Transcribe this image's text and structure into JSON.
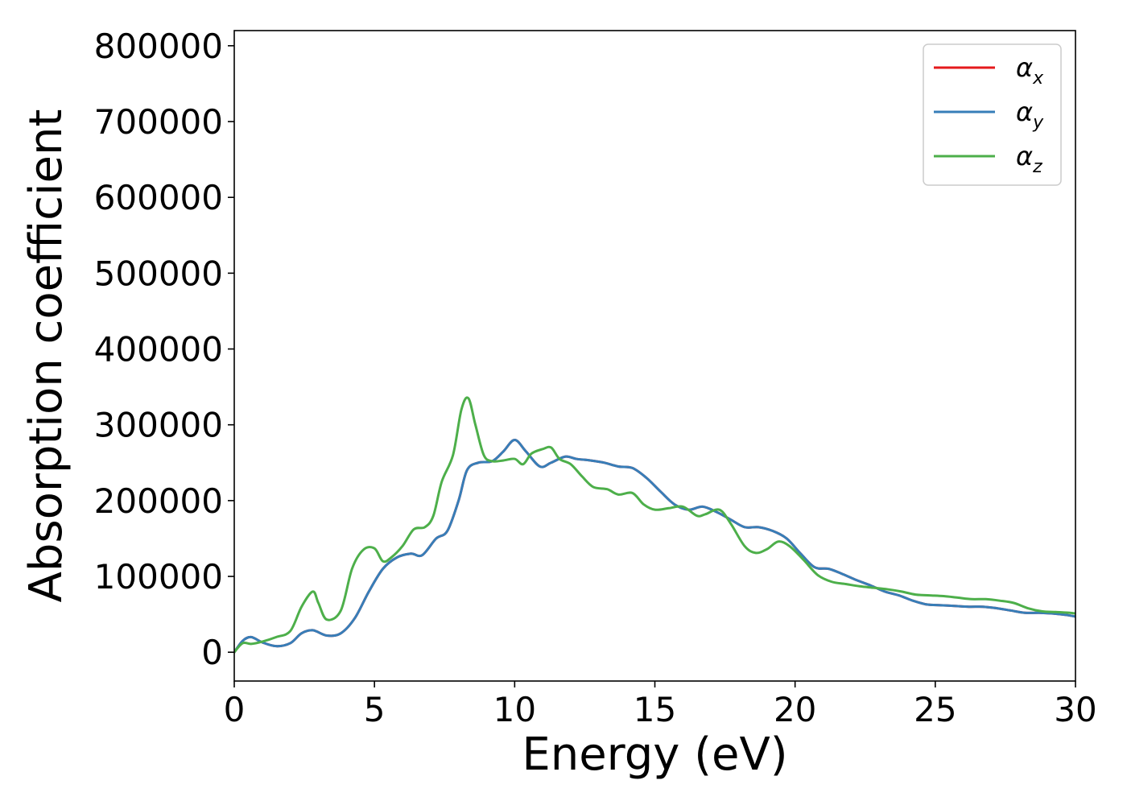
{
  "chart_data": {
    "type": "line",
    "title": "",
    "xlabel": "Energy (eV)",
    "ylabel": "Absorption coefficient",
    "xlim": [
      0,
      30
    ],
    "ylim": [
      -38000,
      820000
    ],
    "xticks": [
      0,
      5,
      10,
      15,
      20,
      25,
      30
    ],
    "xtick_labels": [
      "0",
      "5",
      "10",
      "15",
      "20",
      "25",
      "30"
    ],
    "yticks": [
      0,
      100000,
      200000,
      300000,
      400000,
      500000,
      600000,
      700000,
      800000
    ],
    "ytick_labels": [
      "0",
      "100000",
      "200000",
      "300000",
      "400000",
      "500000",
      "600000",
      "700000",
      "800000"
    ],
    "grid": false,
    "legend_position": "top-right",
    "series": [
      {
        "name": "α_x",
        "label_base": "α",
        "label_sub": "x",
        "color": "#e41a1c",
        "x": [
          0,
          0.3,
          0.6,
          1.0,
          1.5,
          2.0,
          2.4,
          2.8,
          3.3,
          3.8,
          4.3,
          4.8,
          5.3,
          5.8,
          6.3,
          6.7,
          7.2,
          7.6,
          8.0,
          8.3,
          8.7,
          9.2,
          9.6,
          10.0,
          10.4,
          10.9,
          11.3,
          11.8,
          12.2,
          12.7,
          13.2,
          13.7,
          14.2,
          14.7,
          15.2,
          15.7,
          16.2,
          16.7,
          17.2,
          17.7,
          18.2,
          18.7,
          19.2,
          19.7,
          20.2,
          20.7,
          21.2,
          21.7,
          22.2,
          22.7,
          23.2,
          23.7,
          24.2,
          24.7,
          25.2,
          25.7,
          26.2,
          26.7,
          27.2,
          27.7,
          28.2,
          28.7,
          29.2,
          29.7,
          30.0
        ],
        "y": [
          0,
          15000,
          20000,
          13000,
          8000,
          12000,
          25000,
          29000,
          22000,
          25000,
          45000,
          80000,
          110000,
          125000,
          130000,
          128000,
          150000,
          160000,
          200000,
          240000,
          250000,
          252000,
          265000,
          280000,
          265000,
          245000,
          250000,
          258000,
          255000,
          253000,
          250000,
          245000,
          243000,
          230000,
          212000,
          195000,
          188000,
          192000,
          185000,
          175000,
          165000,
          165000,
          160000,
          150000,
          130000,
          112000,
          110000,
          103000,
          95000,
          88000,
          80000,
          75000,
          68000,
          63000,
          62000,
          61000,
          60000,
          60000,
          58000,
          55000,
          52000,
          52000,
          51000,
          49000,
          47000
        ]
      },
      {
        "name": "α_y",
        "label_base": "α",
        "label_sub": "y",
        "color": "#377eb8",
        "x": [
          0,
          0.3,
          0.6,
          1.0,
          1.5,
          2.0,
          2.4,
          2.8,
          3.3,
          3.8,
          4.3,
          4.8,
          5.3,
          5.8,
          6.3,
          6.7,
          7.2,
          7.6,
          8.0,
          8.3,
          8.7,
          9.2,
          9.6,
          10.0,
          10.4,
          10.9,
          11.3,
          11.8,
          12.2,
          12.7,
          13.2,
          13.7,
          14.2,
          14.7,
          15.2,
          15.7,
          16.2,
          16.7,
          17.2,
          17.7,
          18.2,
          18.7,
          19.2,
          19.7,
          20.2,
          20.7,
          21.2,
          21.7,
          22.2,
          22.7,
          23.2,
          23.7,
          24.2,
          24.7,
          25.2,
          25.7,
          26.2,
          26.7,
          27.2,
          27.7,
          28.2,
          28.7,
          29.2,
          29.7,
          30.0
        ],
        "y": [
          0,
          15000,
          20000,
          13000,
          8000,
          12000,
          25000,
          29000,
          22000,
          25000,
          45000,
          80000,
          110000,
          125000,
          130000,
          128000,
          150000,
          160000,
          200000,
          240000,
          250000,
          252000,
          265000,
          280000,
          265000,
          245000,
          250000,
          258000,
          255000,
          253000,
          250000,
          245000,
          243000,
          230000,
          212000,
          195000,
          188000,
          192000,
          185000,
          175000,
          165000,
          165000,
          160000,
          150000,
          130000,
          112000,
          110000,
          103000,
          95000,
          88000,
          80000,
          75000,
          68000,
          63000,
          62000,
          61000,
          60000,
          60000,
          58000,
          55000,
          52000,
          52000,
          51000,
          49000,
          47000
        ]
      },
      {
        "name": "α_z",
        "label_base": "α",
        "label_sub": "z",
        "color": "#4daf4a",
        "x": [
          0,
          0.3,
          0.6,
          1.0,
          1.5,
          2.0,
          2.4,
          2.8,
          3.0,
          3.3,
          3.8,
          4.2,
          4.6,
          5.0,
          5.3,
          5.6,
          6.0,
          6.4,
          6.8,
          7.1,
          7.4,
          7.8,
          8.1,
          8.35,
          8.6,
          8.9,
          9.2,
          9.6,
          10.0,
          10.3,
          10.6,
          11.0,
          11.3,
          11.6,
          12.0,
          12.4,
          12.8,
          13.3,
          13.7,
          14.2,
          14.6,
          15.0,
          15.5,
          16.0,
          16.5,
          16.8,
          17.3,
          17.7,
          18.2,
          18.6,
          19.0,
          19.4,
          19.8,
          20.3,
          20.8,
          21.3,
          21.8,
          22.3,
          22.8,
          23.3,
          23.8,
          24.3,
          24.8,
          25.3,
          25.8,
          26.3,
          26.8,
          27.3,
          27.8,
          28.3,
          28.8,
          29.3,
          29.8,
          30.0
        ],
        "y": [
          0,
          12000,
          11000,
          14000,
          20000,
          28000,
          60000,
          80000,
          65000,
          43000,
          55000,
          110000,
          135000,
          137000,
          120000,
          125000,
          140000,
          162000,
          165000,
          180000,
          225000,
          260000,
          320000,
          335000,
          300000,
          260000,
          252000,
          253000,
          255000,
          248000,
          262000,
          268000,
          270000,
          255000,
          248000,
          232000,
          218000,
          215000,
          208000,
          210000,
          195000,
          188000,
          190000,
          192000,
          180000,
          182000,
          188000,
          170000,
          140000,
          131000,
          136000,
          146000,
          140000,
          122000,
          102000,
          93000,
          90000,
          87000,
          85000,
          83000,
          80000,
          76000,
          75000,
          74000,
          72000,
          70000,
          70000,
          68000,
          65000,
          58000,
          54000,
          53000,
          52000,
          51000
        ]
      }
    ]
  }
}
